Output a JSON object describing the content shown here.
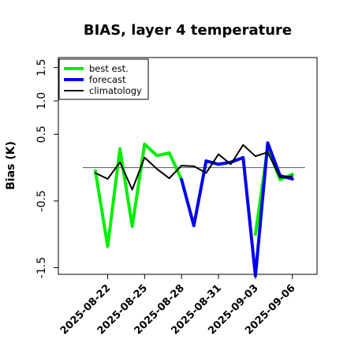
{
  "chart_data": {
    "type": "line",
    "title": "BIAS, layer 4 temperature",
    "xlabel": "",
    "ylabel": "Bias (K)",
    "xlim": [
      "2025-08-18",
      "2025-09-08"
    ],
    "ylim": [
      -1.6,
      1.65
    ],
    "y_ticks": [
      -1.5,
      -0.5,
      0.5,
      1.0,
      1.5
    ],
    "y_tick_labels": [
      "-1.5",
      "-0.5",
      "0.5",
      "1.0",
      "1.5"
    ],
    "x_ticks": [
      "2025-08-22",
      "2025-08-25",
      "2025-08-28",
      "2025-08-31",
      "2025-09-03",
      "2025-09-06"
    ],
    "x_tick_labels": [
      "2025-08-22",
      "2025-08-25",
      "2025-08-28",
      "2025-08-31",
      "2025-09-03",
      "2025-09-06"
    ],
    "highlight_tick": "2025-08-28",
    "highlight_color": "#228b22",
    "reference_line": 0,
    "grid": false,
    "legend_placement": "top-left",
    "x": [
      "2025-08-21",
      "2025-08-22",
      "2025-08-23",
      "2025-08-24",
      "2025-08-25",
      "2025-08-26",
      "2025-08-27",
      "2025-08-28",
      "2025-08-29",
      "2025-08-30",
      "2025-08-31",
      "2025-09-01",
      "2025-09-02",
      "2025-09-03",
      "2025-09-04",
      "2025-09-05",
      "2025-09-06"
    ],
    "series": [
      {
        "name": "best est.",
        "color": "#00ee00",
        "values": [
          -0.05,
          -1.18,
          0.28,
          -0.88,
          0.35,
          0.18,
          0.22,
          -0.18,
          null,
          null,
          null,
          null,
          null,
          -1.0,
          0.3,
          -0.18,
          -0.1
        ]
      },
      {
        "name": "forecast",
        "color": "#0000ee",
        "values": [
          null,
          null,
          null,
          null,
          null,
          null,
          null,
          -0.18,
          -0.87,
          0.1,
          0.05,
          0.08,
          0.15,
          -1.65,
          0.37,
          -0.12,
          -0.17
        ]
      },
      {
        "name": "climatology",
        "color": "#000000",
        "values": [
          -0.08,
          -0.17,
          0.08,
          -0.33,
          0.15,
          -0.02,
          -0.16,
          0.03,
          0.02,
          -0.08,
          0.2,
          0.05,
          0.34,
          0.17,
          0.23,
          -0.15,
          -0.13
        ]
      }
    ]
  }
}
